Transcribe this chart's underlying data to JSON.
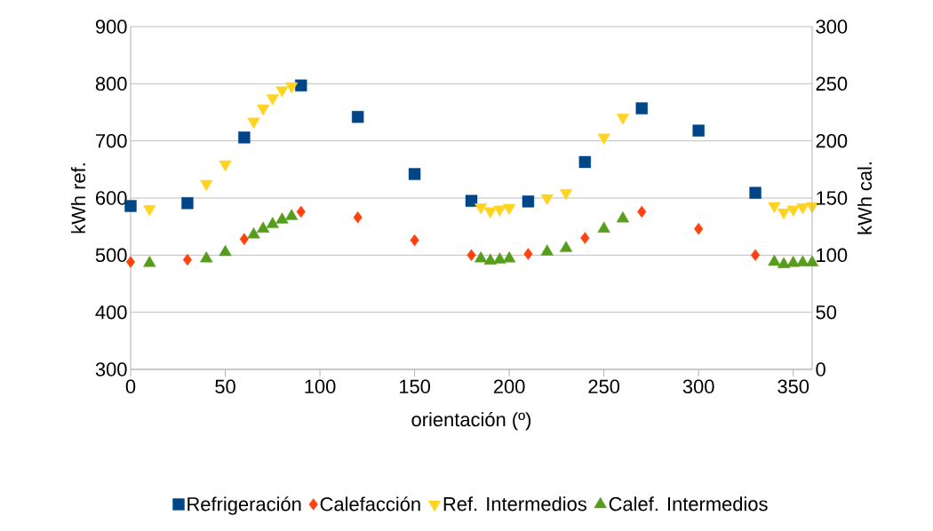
{
  "chart_data": {
    "type": "scatter",
    "xlabel": "orientación (º)",
    "ylabel": "kWh ref.",
    "y2label": "kWh cal.",
    "xlim": [
      0,
      360
    ],
    "xticks": [
      0,
      50,
      100,
      150,
      200,
      250,
      300,
      350
    ],
    "ylim": [
      300,
      900
    ],
    "yticks": [
      300,
      400,
      500,
      600,
      700,
      800,
      900
    ],
    "y2lim": [
      0,
      300
    ],
    "y2ticks": [
      0,
      50,
      100,
      150,
      200,
      250,
      300
    ],
    "grid": "y",
    "legend": "bottom",
    "series": [
      {
        "name": "Refrigeración",
        "color": "#004586",
        "marker": "square",
        "x": [
          0,
          30,
          60,
          90,
          120,
          150,
          180,
          210,
          240,
          270,
          300,
          330
        ],
        "values": [
          586,
          591,
          706,
          797,
          742,
          642,
          595,
          594,
          663,
          757,
          718,
          609
        ]
      },
      {
        "name": "Calefacción",
        "color": "#ff420e",
        "marker": "diamond",
        "axis": "y2",
        "x": [
          0,
          30,
          60,
          90,
          120,
          150,
          180,
          210,
          240,
          270,
          300,
          330
        ],
        "values": [
          94,
          96,
          114,
          138,
          133,
          113,
          100,
          101,
          115,
          138,
          123,
          100
        ]
      },
      {
        "name": "Ref. Intermedios",
        "color": "#ffd320",
        "marker": "triangle-down",
        "x": [
          10,
          40,
          50,
          65,
          70,
          75,
          80,
          85,
          185,
          190,
          195,
          200,
          220,
          230,
          250,
          260,
          340,
          345,
          350,
          355,
          360
        ],
        "values": [
          581,
          625,
          659,
          734,
          757,
          775,
          789,
          796,
          584,
          577,
          580,
          583,
          600,
          609,
          706,
          741,
          586,
          575,
          580,
          584,
          586
        ]
      },
      {
        "name": "Calef. Intermedios",
        "color": "#579d1c",
        "marker": "triangle",
        "axis": "y2",
        "x": [
          10,
          40,
          50,
          65,
          70,
          75,
          80,
          85,
          185,
          190,
          195,
          200,
          220,
          230,
          250,
          260,
          340,
          345,
          350,
          355,
          360
        ],
        "values": [
          93,
          97,
          102.5,
          118,
          123,
          127,
          131,
          134,
          97,
          95,
          96,
          97,
          103,
          106,
          123,
          132,
          94,
          92,
          93,
          93.5,
          93.5
        ]
      }
    ]
  }
}
